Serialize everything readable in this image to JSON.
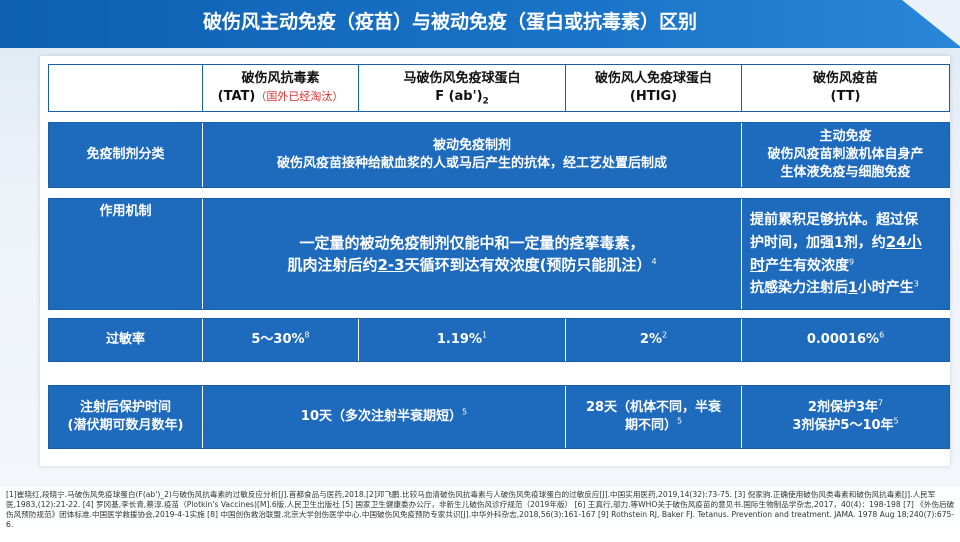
{
  "title": "破伤风主动免疫（疫苗）与被动免疫（蛋白或抗毒素）区别",
  "header": {
    "c1_line1": "破伤风抗毒素",
    "c1_line2a": "(TAT)",
    "c1_line2b": "（国外已经淘汰）",
    "c2_line1": "马破伤风免疫球蛋白",
    "c2_line2": "F (ab')",
    "c2_sub": "2",
    "c3_line1": "破伤风人免疫球蛋白",
    "c3_line2": "(HTIG)",
    "c4_line1": "破伤风疫苗",
    "c4_line2": "(TT)"
  },
  "row_category": {
    "label": "免疫制剂分类",
    "passive_title": "被动免疫制剂",
    "passive_desc": "破伤风疫苗接种给献血浆的人或马后产生的抗体，经工艺处置后制成",
    "active_title": "主动免疫",
    "active_desc1": "破伤风疫苗刺激机体自身产",
    "active_desc2": "生体液免疫与细胞免疫"
  },
  "row_mechanism": {
    "label": "作用机制",
    "passive_line1": "一定量的被动免疫制剂仅能中和一定量的痉挛毒素，",
    "passive_line2a": "肌肉注射后约",
    "passive_line2b": "2-3",
    "passive_line2c": "天循环到达有效浓度(预防只能肌注）",
    "passive_sup": "4",
    "active_line1": "提前累积足够抗体。超过保",
    "active_line2a": "护时间，加强1剂，约",
    "active_line2b": "24小",
    "active_line3a": "时",
    "active_line3b": "产生有效浓度",
    "active_sup1": "9",
    "active_line4a": "抗感染力注射后",
    "active_line4b": "1",
    "active_line4c": "小时产生",
    "active_sup2": "3"
  },
  "row_allergy": {
    "label": "过敏率",
    "c1": "5～30%",
    "c1_sup": "8",
    "c2": "1.19%",
    "c2_sup": "1",
    "c3": "2%",
    "c3_sup": "2",
    "c4": "0.00016%",
    "c4_sup": "6"
  },
  "row_protection": {
    "label1": "注射后保护时间",
    "label2": "(潜伏期可数月数年)",
    "c12": "10天（多次注射半衰期短）",
    "c12_sup": "5",
    "c3_line1": "28天（机体不同，半衰",
    "c3_line2": "期不同）",
    "c3_sup": "5",
    "c4_line1": "2剂保护3年",
    "c4_sup1": "7",
    "c4_line2": "3剂保护5～10年",
    "c4_sup2": "5"
  },
  "footnote": "[1]崔晓红,段晓宁.马破伤风免疫球蛋白(F(ab')_2)与破伤风抗毒素的过敏反应分析[J].首都食品与医药,2018.[2]邓飞鹏.比较马血清破伤风抗毒素与人破伤风免疫球蛋白的过敏反应[J].中国实用医药,2019,14(32):73-75. [3] 倪家驹.正确使用破伤风类毒素和破伤风抗毒素[J].人民军医,1983,(12):21-22. [4] 罗冈基,李长青,蔡淳.疫苗（Plotkin's Vaccines)[M].6版.人民卫生出版社 [5] 国家卫生健康委办公厅，非新生儿破伤风诊疗规范（2019年版） [6] 王真行,邬力.等WHO关于破伤风疫苗的意见书.国际生物制品学杂志,2017，40(4)：198-198 [7] 《外伤后破伤风预防规范》团体标准.中国医学救援协会,2019-4-1实施 [8] 中国创伤救治联盟.北京大学创伤医学中心.中国破伤风免疫预防专家共识[J].中华外科杂志,2018,56(3):161-167 [9] Rothstein RJ, Baker FJ. Tetanus. Prevention and treatment. JAMA. 1978 Aug 18;240(7):675-6."
}
